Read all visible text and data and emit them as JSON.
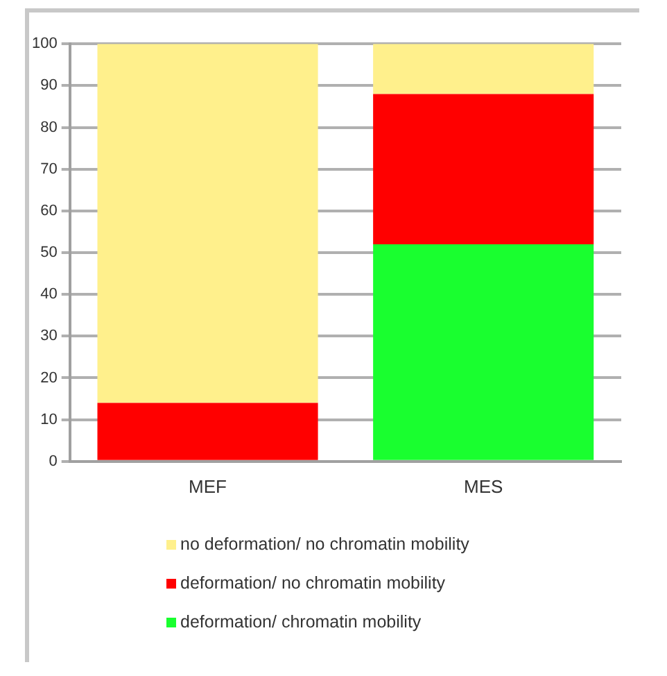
{
  "chart_data": {
    "type": "bar",
    "stacked": true,
    "categories": [
      "MEF",
      "MES"
    ],
    "series": [
      {
        "name": "deformation/ chromatin mobility",
        "color": "#19ff2f",
        "values": [
          0,
          52
        ]
      },
      {
        "name": "deformation/ no chromatin mobility",
        "color": "#ff0000",
        "values": [
          14,
          36
        ]
      },
      {
        "name": "no deformation/ no chromatin mobility",
        "color": "#fff08c",
        "values": [
          86,
          12
        ]
      }
    ],
    "ylim": [
      0,
      100
    ],
    "yticks": [
      0,
      10,
      20,
      30,
      40,
      50,
      60,
      70,
      80,
      90,
      100
    ],
    "grid": "y",
    "legend": "bottom"
  }
}
